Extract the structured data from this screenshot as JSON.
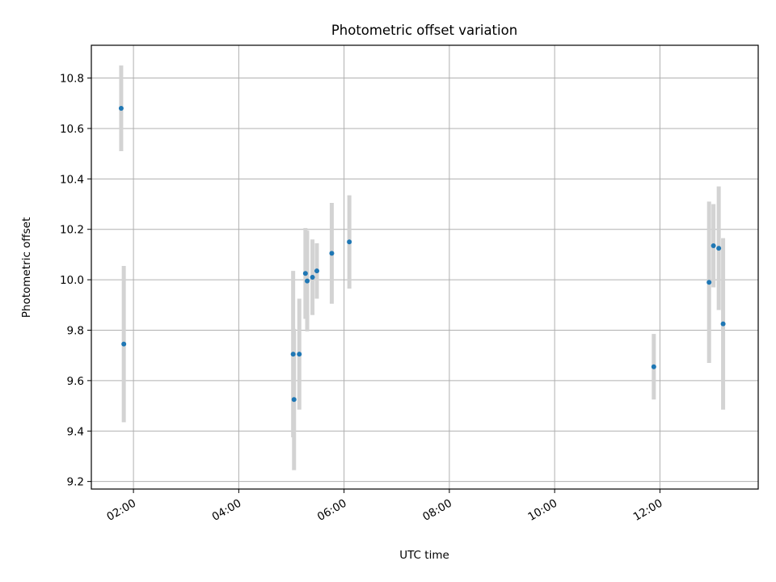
{
  "chart_data": {
    "type": "scatter",
    "title": "Photometric offset variation",
    "xlabel": "UTC time",
    "ylabel": "Photometric offset",
    "x_is_time": true,
    "xlim": [
      "01:12",
      "13:52"
    ],
    "ylim": [
      9.17,
      10.93
    ],
    "xticks": [
      "02:00",
      "04:00",
      "06:00",
      "08:00",
      "10:00",
      "12:00"
    ],
    "yticks": [
      "9.2",
      "9.4",
      "9.6",
      "9.8",
      "10.0",
      "10.2",
      "10.4",
      "10.6",
      "10.8"
    ],
    "grid": true,
    "point_color": "#1f77b4",
    "errorbar_color": "#d3d3d3",
    "series": [
      {
        "points": [
          {
            "x": "01:46",
            "y": 10.68,
            "err": 0.17
          },
          {
            "x": "01:49",
            "y": 9.745,
            "err": 0.31
          },
          {
            "x": "05:02",
            "y": 9.705,
            "err": 0.33
          },
          {
            "x": "05:03",
            "y": 9.525,
            "err": 0.28
          },
          {
            "x": "05:09",
            "y": 9.705,
            "err": 0.22
          },
          {
            "x": "05:16",
            "y": 10.025,
            "err": 0.18
          },
          {
            "x": "05:18",
            "y": 9.995,
            "err": 0.2
          },
          {
            "x": "05:24",
            "y": 10.01,
            "err": 0.15
          },
          {
            "x": "05:29",
            "y": 10.035,
            "err": 0.11
          },
          {
            "x": "05:46",
            "y": 10.105,
            "err": 0.2
          },
          {
            "x": "06:06",
            "y": 10.15,
            "err": 0.185
          },
          {
            "x": "11:53",
            "y": 9.655,
            "err": 0.13
          },
          {
            "x": "12:56",
            "y": 9.99,
            "err": 0.32
          },
          {
            "x": "13:01",
            "y": 10.135,
            "err": 0.165
          },
          {
            "x": "13:07",
            "y": 10.125,
            "err": 0.245
          },
          {
            "x": "13:12",
            "y": 9.825,
            "err": 0.34
          }
        ]
      }
    ]
  }
}
